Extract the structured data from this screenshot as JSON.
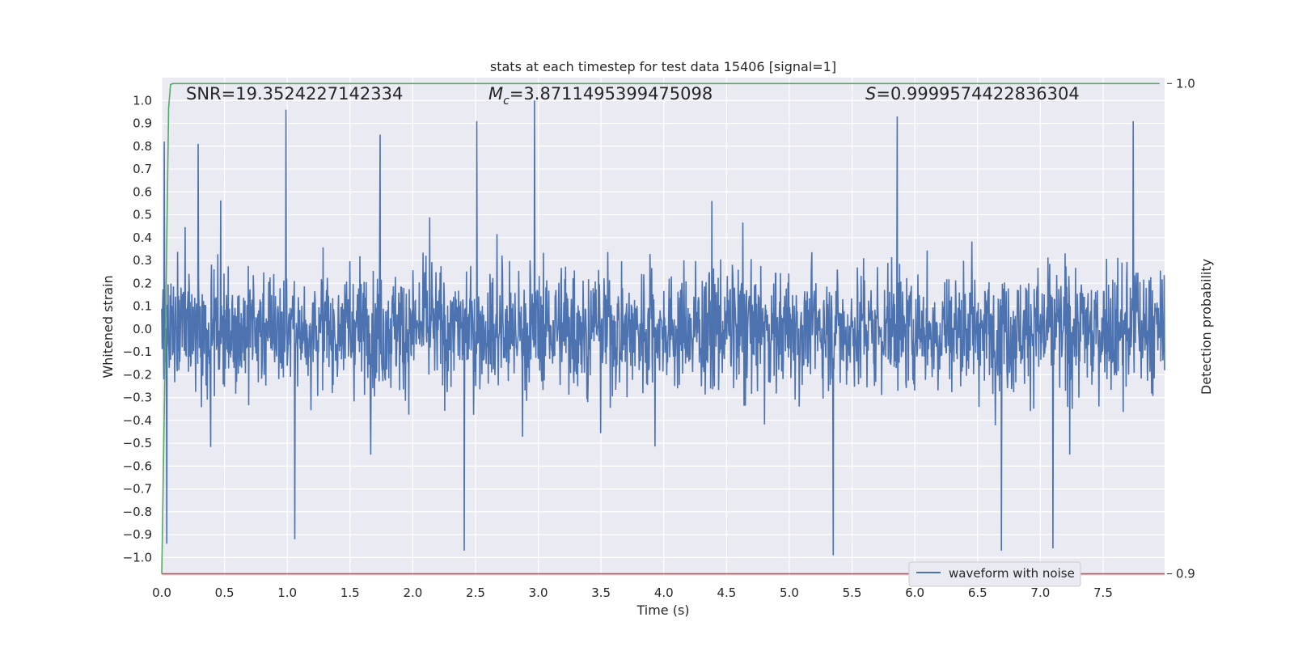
{
  "chart_data": {
    "type": "line",
    "title": "stats at each timestep for test data 15406 [signal=1]",
    "xlabel": "Time (s)",
    "ylabel": "Whitened strain",
    "ylabel_right": "Detection probability",
    "xlim": [
      0.0,
      7.99
    ],
    "ylim": [
      -1.08,
      1.1
    ],
    "ylim_right": [
      0.8996,
      1.0012
    ],
    "x_ticks": [
      "0.0",
      "0.5",
      "1.0",
      "1.5",
      "2.0",
      "2.5",
      "3.0",
      "3.5",
      "4.0",
      "4.5",
      "5.0",
      "5.5",
      "6.0",
      "6.5",
      "7.0",
      "7.5"
    ],
    "y_ticks": [
      "1.0",
      "0.9",
      "0.8",
      "0.7",
      "0.6",
      "0.5",
      "0.4",
      "0.3",
      "0.2",
      "0.1",
      "0.0",
      "−0.1",
      "−0.2",
      "−0.3",
      "−0.4",
      "−0.5",
      "−0.6",
      "−0.7",
      "−0.8",
      "−0.9",
      "−1.0"
    ],
    "y_right_ticks": [
      "1.0",
      "0.9"
    ],
    "grid": true,
    "legend_position": "lower-right",
    "annotations": {
      "snr": "SNR=19.3524227142334",
      "mc_symbol": "M",
      "mc_sub": "c",
      "mc_value": "=3.8711495399475098",
      "s_symbol": "S",
      "s_value": "=0.9999574422836304"
    },
    "series": [
      {
        "name": "waveform with noise",
        "color": "#4c72b0",
        "axis": "left",
        "description": "whitened strain noise, roughly uniform envelope about ±0.6 with spikes to ±1.0",
        "sample_peaks": [
          {
            "x": 0.02,
            "y": 0.82
          },
          {
            "x": 0.04,
            "y": -0.94
          },
          {
            "x": 0.29,
            "y": 0.81
          },
          {
            "x": 0.99,
            "y": 0.96
          },
          {
            "x": 1.06,
            "y": -0.92
          },
          {
            "x": 1.74,
            "y": 0.85
          },
          {
            "x": 2.41,
            "y": -0.97
          },
          {
            "x": 2.51,
            "y": 0.91
          },
          {
            "x": 2.97,
            "y": 1.0
          },
          {
            "x": 5.35,
            "y": -0.99
          },
          {
            "x": 5.86,
            "y": 0.93
          },
          {
            "x": 6.69,
            "y": -0.97
          },
          {
            "x": 7.1,
            "y": -0.96
          },
          {
            "x": 7.74,
            "y": 0.91
          }
        ]
      },
      {
        "name": "",
        "color": "#55a868",
        "axis": "right",
        "x": [
          0.0,
          0.03,
          0.055,
          0.07,
          0.09,
          0.12,
          7.95
        ],
        "y": [
          0.9,
          0.95,
          0.995,
          0.9998,
          0.99999,
          1.0,
          1.0
        ]
      },
      {
        "name": "",
        "color": "#c44e52",
        "axis": "right",
        "x": [
          0.0,
          7.99
        ],
        "y": [
          0.9,
          0.9
        ]
      }
    ]
  }
}
